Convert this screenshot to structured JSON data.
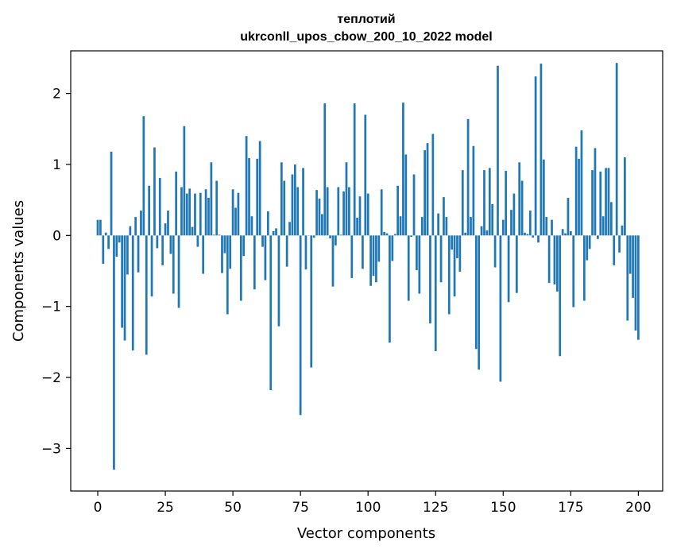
{
  "chart_data": {
    "type": "bar",
    "title_line1": "теплотий",
    "title_line2": "ukrconll_upos_cbow_200_10_2022 model",
    "xlabel": "Vector components",
    "ylabel": "Components values",
    "xlim": [
      -10,
      209
    ],
    "ylim": [
      -3.6,
      2.6
    ],
    "xticks": [
      0,
      25,
      50,
      75,
      100,
      125,
      150,
      175,
      200
    ],
    "xtick_labels": [
      "0",
      "25",
      "50",
      "75",
      "100",
      "125",
      "150",
      "175",
      "200"
    ],
    "yticks": [
      -3,
      -2,
      -1,
      0,
      1,
      2
    ],
    "ytick_labels": [
      "−3",
      "−2",
      "−1",
      "0",
      "1",
      "2"
    ],
    "bar_color": "#1f77b4",
    "grid": false,
    "legend": false,
    "values": [
      0.22,
      0.22,
      -0.4,
      0.04,
      -0.19,
      1.18,
      -3.3,
      -0.3,
      -0.1,
      -1.3,
      -1.48,
      -0.55,
      0.13,
      -1.62,
      0.26,
      -0.52,
      0.35,
      1.68,
      -1.68,
      0.7,
      -0.86,
      1.24,
      -0.18,
      0.81,
      -0.42,
      0.17,
      0.35,
      -0.26,
      -0.82,
      0.9,
      -1.02,
      0.68,
      1.54,
      0.59,
      0.66,
      0.12,
      0.59,
      -0.16,
      0.6,
      -0.54,
      0.65,
      0.53,
      1.03,
      0.01,
      0.77,
      0.01,
      -0.53,
      -0.25,
      -1.11,
      -0.47,
      0.65,
      0.39,
      0.6,
      -0.92,
      -0.29,
      1.4,
      1.09,
      0.27,
      -0.76,
      1.08,
      1.33,
      -0.16,
      -0.63,
      0.34,
      -2.18,
      0.06,
      0.1,
      -1.28,
      1.03,
      0.77,
      -0.44,
      0.19,
      0.86,
      1.0,
      0.68,
      -2.53,
      0.95,
      -0.48,
      0.0,
      -1.86,
      -0.03,
      0.64,
      0.52,
      0.3,
      1.86,
      0.68,
      -0.04,
      -0.72,
      -0.14,
      0.68,
      0.01,
      0.62,
      1.03,
      0.68,
      -0.6,
      1.86,
      0.25,
      0.55,
      -0.47,
      1.7,
      0.59,
      -0.71,
      -0.57,
      -0.66,
      -0.37,
      0.65,
      0.05,
      0.03,
      -1.51,
      -0.36,
      0.02,
      0.7,
      0.27,
      1.87,
      1.14,
      -0.92,
      -0.02,
      0.86,
      -0.49,
      -0.82,
      0.26,
      1.2,
      1.3,
      -1.24,
      1.43,
      -1.63,
      0.31,
      -0.66,
      0.54,
      0.26,
      -1.11,
      -0.2,
      -0.86,
      -0.32,
      -0.51,
      0.92,
      0.04,
      1.64,
      0.26,
      1.26,
      -1.6,
      -1.89,
      0.13,
      0.92,
      0.07,
      0.95,
      0.44,
      -0.45,
      2.39,
      -2.06,
      0.22,
      0.91,
      -0.94,
      0.36,
      0.59,
      -0.81,
      1.03,
      0.77,
      0.04,
      0.02,
      0.35,
      -0.03,
      2.24,
      -0.1,
      2.42,
      1.07,
      0.26,
      -0.67,
      0.22,
      -0.69,
      -0.79,
      -1.7,
      0.09,
      0.03,
      0.53,
      0.06,
      -1.01,
      1.25,
      1.08,
      1.48,
      -0.92,
      -0.35,
      -0.19,
      0.92,
      1.23,
      -0.05,
      0.9,
      0.27,
      0.95,
      0.95,
      0.47,
      -0.42,
      2.43,
      -0.24,
      0.14,
      1.1,
      -1.2,
      -0.54,
      -0.88,
      -1.34,
      -1.47
    ]
  }
}
